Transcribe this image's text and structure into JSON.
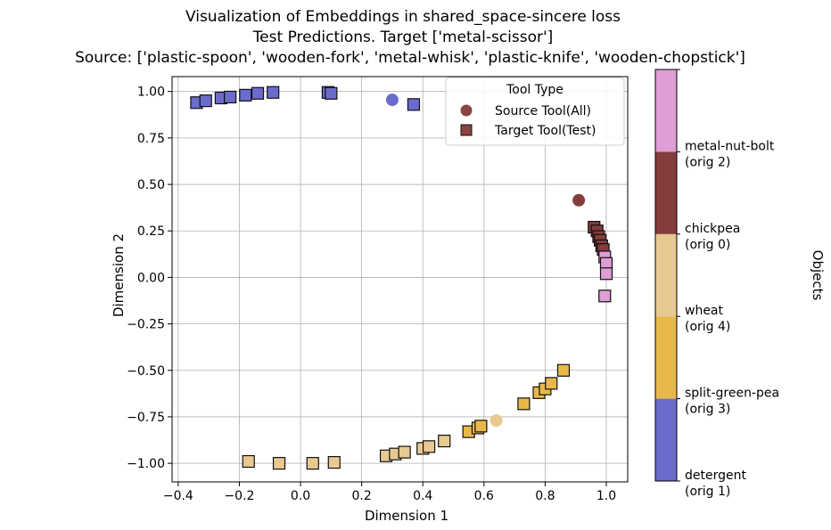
{
  "chart_data": {
    "type": "scatter",
    "title_lines": [
      "Visualization of Embeddings in shared_space-sincere loss",
      "Test Predictions. Target ['metal-scissor']",
      "Source: ['plastic-spoon', 'wooden-fork', 'metal-whisk', 'plastic-knife', 'wooden-chopstick']"
    ],
    "xlabel": "Dimension 1",
    "ylabel": "Dimension 2",
    "xlim": [
      -0.42,
      1.07
    ],
    "ylim": [
      -1.1,
      1.08
    ],
    "xticks": [
      -0.4,
      -0.2,
      0.0,
      0.2,
      0.4,
      0.6,
      0.8,
      1.0
    ],
    "xtick_labels": [
      "−0.4",
      "−0.2",
      "0.0",
      "0.2",
      "0.4",
      "0.6",
      "0.8",
      "1.0"
    ],
    "yticks": [
      -1.0,
      -0.75,
      -0.5,
      -0.25,
      0.0,
      0.25,
      0.5,
      0.75,
      1.0
    ],
    "ytick_labels": [
      "−1.00",
      "−0.75",
      "−0.50",
      "−0.25",
      "0.00",
      "0.25",
      "0.50",
      "0.75",
      "1.00"
    ],
    "grid": true,
    "legend": {
      "title": "Tool Type",
      "placement": "top-right",
      "entries": [
        {
          "label": "Source Tool(All)",
          "marker": "circle",
          "color": "#8b4540"
        },
        {
          "label": "Target Tool(Test)",
          "marker": "square",
          "color": "#8b4540"
        }
      ]
    },
    "colorbar": {
      "label": "Objects",
      "categories": [
        {
          "name": "detergent",
          "orig": "(orig 1)",
          "color": "#6b6bcc"
        },
        {
          "name": "split-green-pea",
          "orig": "(orig 3)",
          "color": "#e8b84a"
        },
        {
          "name": "wheat",
          "orig": "(orig 4)",
          "color": "#e8c992"
        },
        {
          "name": "chickpea",
          "orig": "(orig 0)",
          "color": "#843c3c"
        },
        {
          "name": "metal-nut-bolt",
          "orig": "(orig 2)",
          "color": "#de9ed6"
        }
      ]
    },
    "series": [
      {
        "category": "detergent",
        "tool": "source",
        "points": [
          [
            0.3,
            0.955
          ]
        ]
      },
      {
        "category": "detergent",
        "tool": "target",
        "points": [
          [
            -0.34,
            0.94
          ],
          [
            -0.31,
            0.95
          ],
          [
            -0.26,
            0.965
          ],
          [
            -0.23,
            0.97
          ],
          [
            -0.18,
            0.98
          ],
          [
            -0.14,
            0.99
          ],
          [
            -0.09,
            0.995
          ],
          [
            0.09,
            0.995
          ],
          [
            0.1,
            0.99
          ],
          [
            0.37,
            0.93
          ]
        ]
      },
      {
        "category": "split-green-pea",
        "tool": "target",
        "points": [
          [
            0.73,
            -0.68
          ],
          [
            0.78,
            -0.62
          ],
          [
            0.8,
            -0.6
          ],
          [
            0.82,
            -0.57
          ],
          [
            0.86,
            -0.5
          ],
          [
            0.55,
            -0.83
          ],
          [
            0.58,
            -0.81
          ],
          [
            0.59,
            -0.8
          ]
        ]
      },
      {
        "category": "wheat",
        "tool": "source",
        "points": [
          [
            0.64,
            -0.77
          ]
        ]
      },
      {
        "category": "wheat",
        "tool": "target",
        "points": [
          [
            -0.17,
            -0.99
          ],
          [
            -0.07,
            -1.0
          ],
          [
            0.04,
            -1.0
          ],
          [
            0.11,
            -0.995
          ],
          [
            0.28,
            -0.96
          ],
          [
            0.31,
            -0.95
          ],
          [
            0.34,
            -0.94
          ],
          [
            0.4,
            -0.92
          ],
          [
            0.42,
            -0.91
          ],
          [
            0.47,
            -0.88
          ]
        ]
      },
      {
        "category": "chickpea",
        "tool": "source",
        "points": [
          [
            0.91,
            0.415
          ]
        ]
      },
      {
        "category": "chickpea",
        "tool": "target",
        "points": [
          [
            0.96,
            0.27
          ],
          [
            0.97,
            0.25
          ],
          [
            0.975,
            0.22
          ],
          [
            0.98,
            0.2
          ],
          [
            0.985,
            0.17
          ],
          [
            0.99,
            0.15
          ]
        ]
      },
      {
        "category": "metal-nut-bolt",
        "tool": "target",
        "points": [
          [
            0.995,
            0.11
          ],
          [
            1.0,
            0.075
          ],
          [
            1.0,
            0.02
          ],
          [
            0.995,
            -0.1
          ]
        ]
      }
    ]
  }
}
